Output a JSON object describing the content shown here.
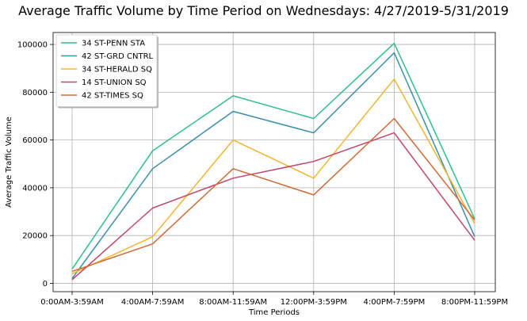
{
  "chart_data": {
    "type": "line",
    "title": "Average Traffic Volume by Time Period on Wednesdays: 4/27/2019-5/31/2019",
    "xlabel": "Time Periods",
    "ylabel": "Average Traffic Volume",
    "categories": [
      "0:00AM-3:59AM",
      "4:00AM-7:59AM",
      "8:00AM-11:59AM",
      "12:00PM-3:59PM",
      "4:00PM-7:59PM",
      "8:00PM-11:59PM"
    ],
    "ylim": [
      -3500,
      105000
    ],
    "yticks": [
      0,
      20000,
      40000,
      60000,
      80000,
      100000
    ],
    "grid": true,
    "legend_position": "upper-left",
    "series": [
      {
        "name": "34 ST-PENN STA",
        "color": "#2fbf8a",
        "values": [
          6000,
          55500,
          78500,
          69000,
          100500,
          27000
        ]
      },
      {
        "name": "42 ST-GRD CNTRL",
        "color": "#3a8fab",
        "values": [
          2000,
          48000,
          72000,
          63000,
          96500,
          19500
        ]
      },
      {
        "name": "34 ST-HERALD SQ",
        "color": "#f2b531",
        "values": [
          4000,
          19500,
          60000,
          44000,
          85500,
          25000
        ]
      },
      {
        "name": "14 ST-UNION SQ",
        "color": "#c2456e",
        "values": [
          1500,
          31500,
          44000,
          51000,
          63000,
          18000
        ]
      },
      {
        "name": "42 ST-TIMES SQ",
        "color": "#d06a35",
        "values": [
          5000,
          16500,
          48000,
          37000,
          69000,
          26500
        ]
      }
    ]
  }
}
